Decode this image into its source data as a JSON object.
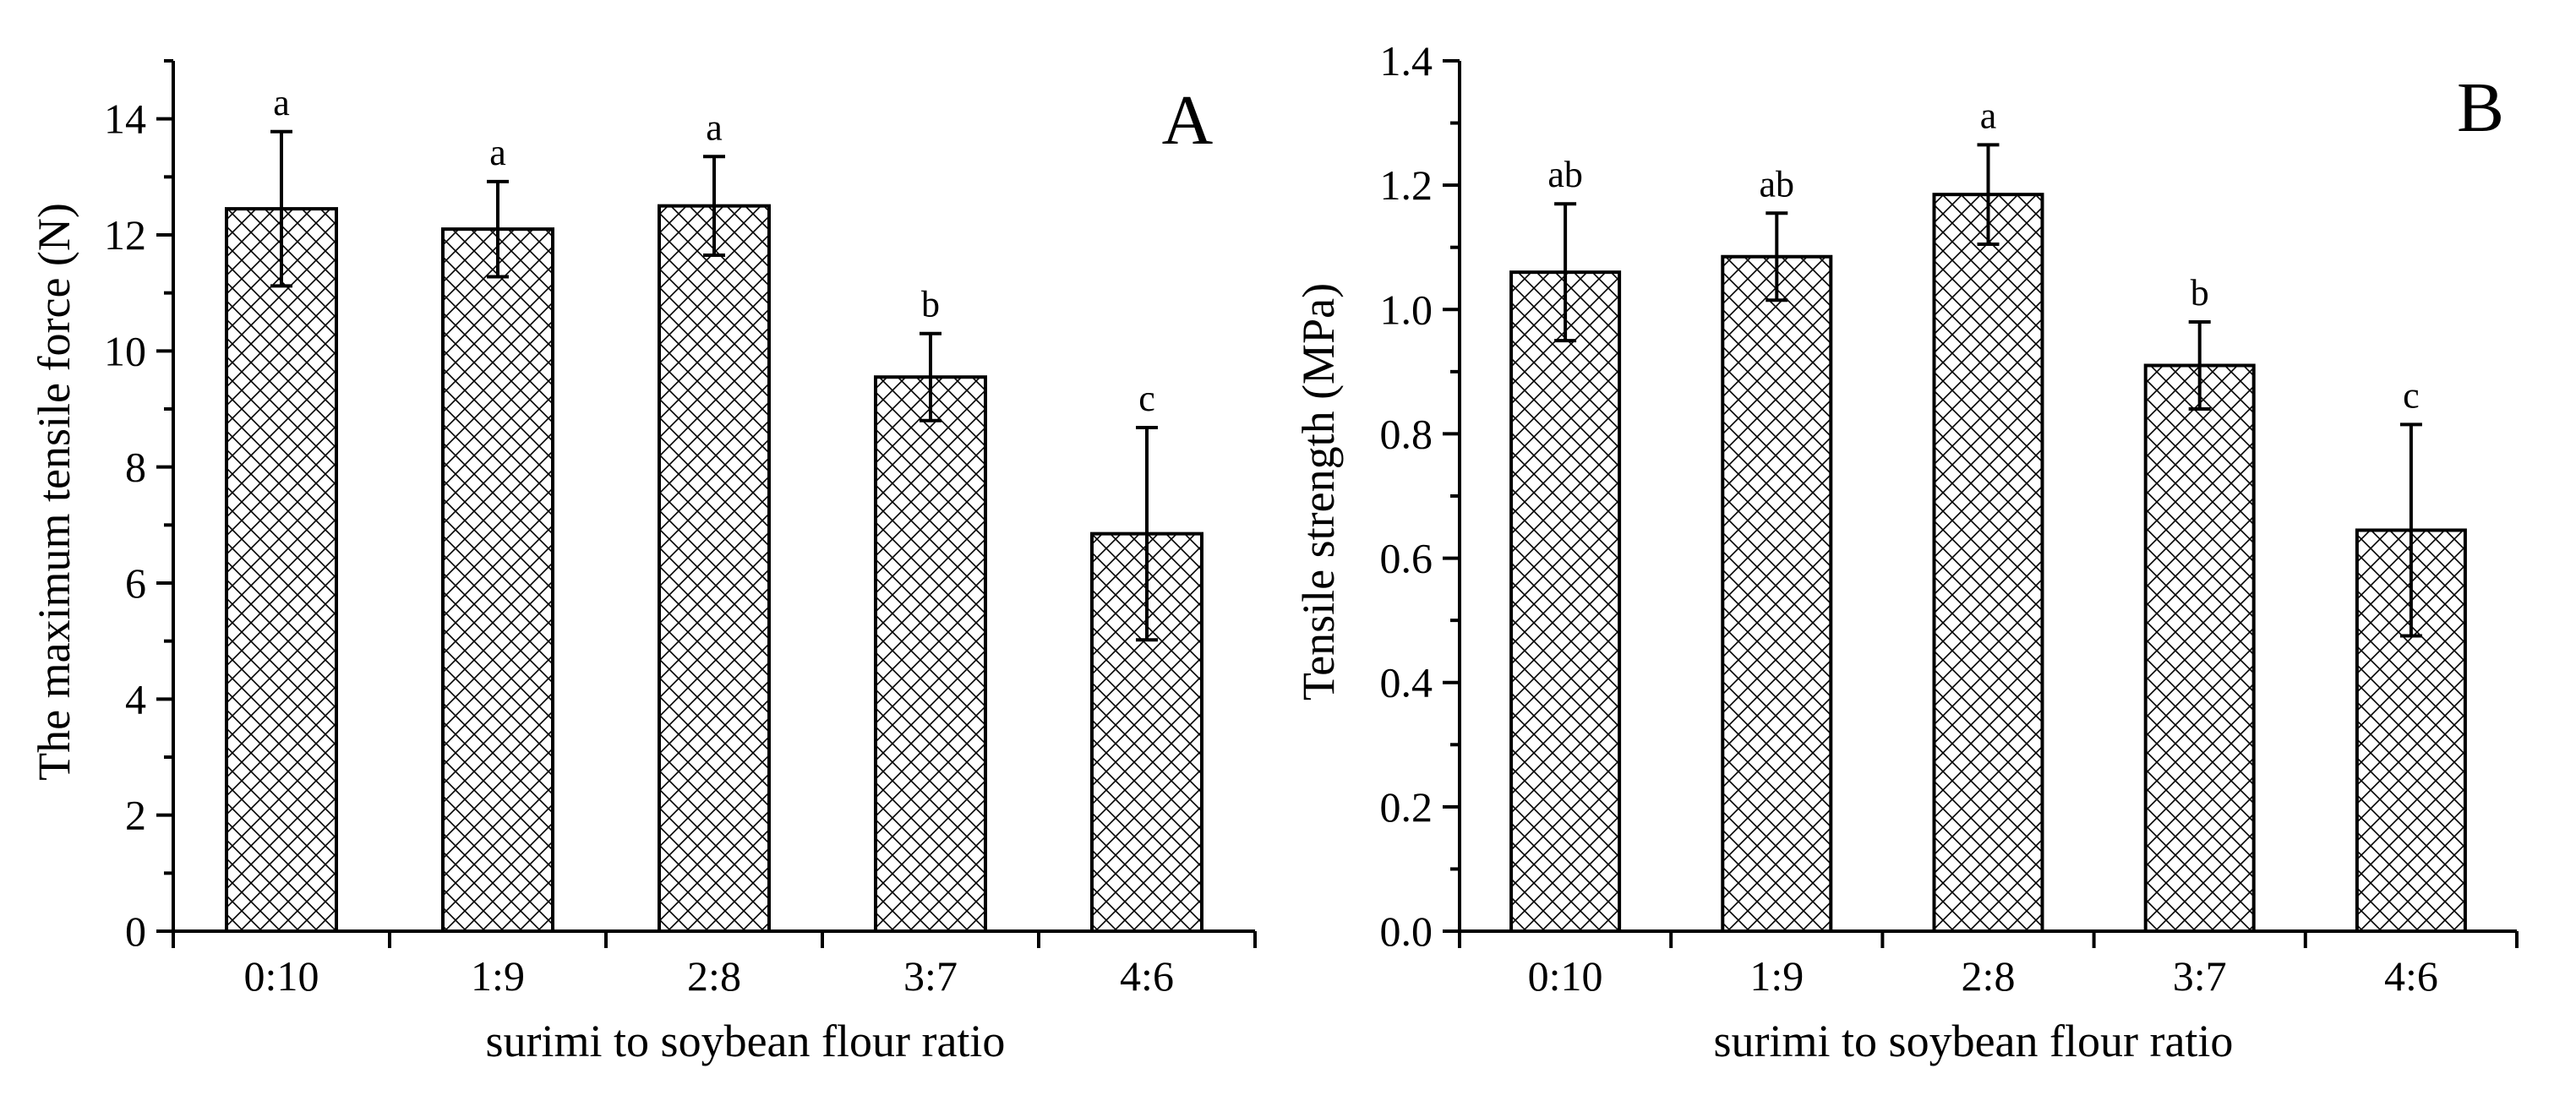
{
  "chart_data": [
    {
      "type": "bar",
      "panel_label": "A",
      "title": "",
      "xlabel": "surimi to soybean flour ratio",
      "ylabel": "The maximum tensile force (N)",
      "categories": [
        "0:10",
        "1:9",
        "2:8",
        "3:7",
        "4:6"
      ],
      "values": [
        12.45,
        12.1,
        12.5,
        9.55,
        6.85
      ],
      "errors": [
        1.33,
        0.82,
        0.85,
        0.75,
        1.83
      ],
      "significance": [
        "a",
        "a",
        "a",
        "b",
        "c"
      ],
      "ylim": [
        0,
        15
      ],
      "yticks": [
        0,
        2,
        4,
        6,
        8,
        10,
        12,
        14
      ],
      "ytick_labels": [
        "0",
        "2",
        "4",
        "6",
        "8",
        "10",
        "12",
        "14"
      ],
      "bar_fill": "crosshatch",
      "bar_color": "#000000"
    },
    {
      "type": "bar",
      "panel_label": "B",
      "title": "",
      "xlabel": "surimi to soybean flour ratio",
      "ylabel": "Tensile strength (MPa)",
      "categories": [
        "0:10",
        "1:9",
        "2:8",
        "3:7",
        "4:6"
      ],
      "values": [
        1.06,
        1.085,
        1.185,
        0.91,
        0.645
      ],
      "errors": [
        0.11,
        0.07,
        0.08,
        0.07,
        0.17
      ],
      "significance": [
        "ab",
        "ab",
        "a",
        "b",
        "c"
      ],
      "ylim": [
        0,
        1.4
      ],
      "yticks": [
        0,
        0.2,
        0.4,
        0.6,
        0.8,
        1.0,
        1.2,
        1.4
      ],
      "ytick_labels": [
        "0.0",
        "0.2",
        "0.4",
        "0.6",
        "0.8",
        "1.0",
        "1.2",
        "1.4"
      ],
      "bar_fill": "crosshatch",
      "bar_color": "#000000"
    }
  ]
}
